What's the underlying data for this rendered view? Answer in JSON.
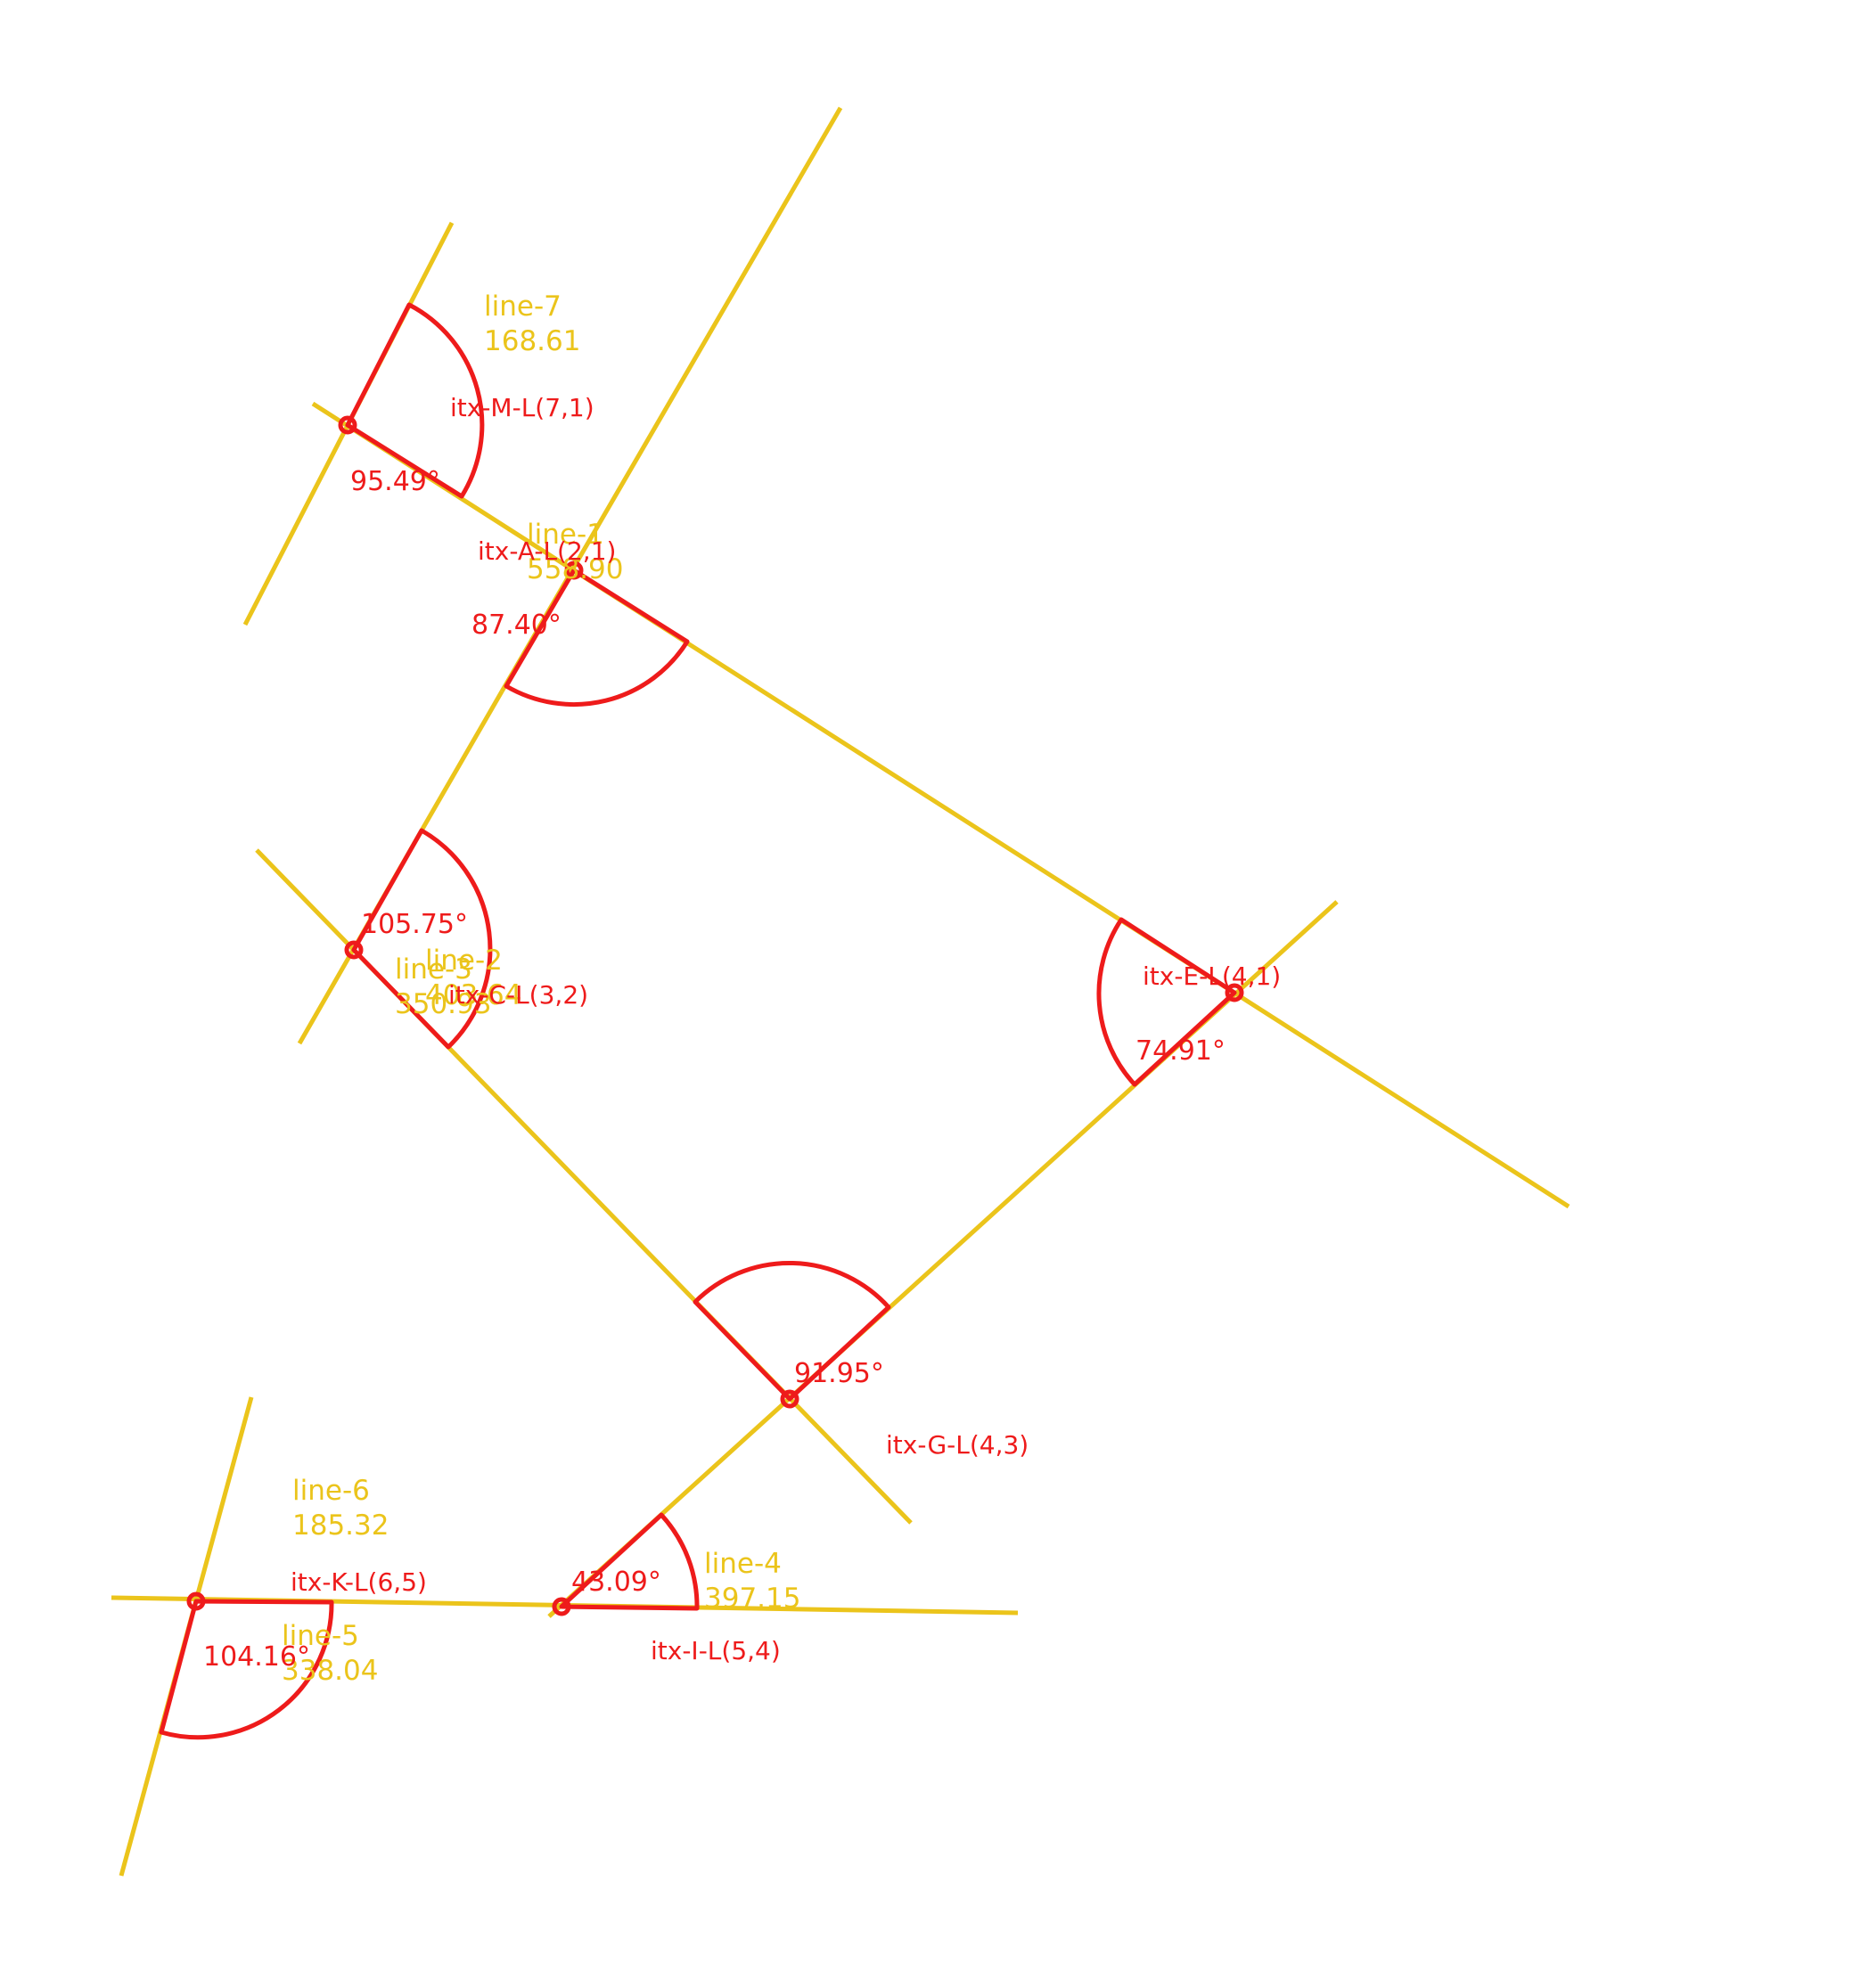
{
  "colors": {
    "line": "#ebc41b",
    "marker": "#ee1b1b",
    "background": "#ffffff"
  },
  "lines": [
    {
      "id": "line-1",
      "name": "line-1",
      "length": "558.90"
    },
    {
      "id": "line-2",
      "name": "line-2",
      "length": "403.64"
    },
    {
      "id": "line-3",
      "name": "line-3",
      "length": "350.93"
    },
    {
      "id": "line-4",
      "name": "line-4",
      "length": "397.15"
    },
    {
      "id": "line-5",
      "name": "line-5",
      "length": "338.04"
    },
    {
      "id": "line-6",
      "name": "line-6",
      "length": "185.32"
    },
    {
      "id": "line-7",
      "name": "line-7",
      "length": "168.61"
    }
  ],
  "intersections": [
    {
      "id": "M",
      "label": "itx-M-L(7,1)",
      "angle": "95.49°"
    },
    {
      "id": "A",
      "label": "itx-A-L(2,1)",
      "angle": "87.40°"
    },
    {
      "id": "C",
      "label": "itx-C-L(3,2)",
      "angle": "105.75°"
    },
    {
      "id": "E",
      "label": "itx-E-L(4,1)",
      "angle": "74.91°"
    },
    {
      "id": "G",
      "label": "itx-G-L(4,3)",
      "angle": "91.95°"
    },
    {
      "id": "I",
      "label": "itx-I-L(5,4)",
      "angle": "43.09°"
    },
    {
      "id": "K",
      "label": "itx-K-L(6,5)",
      "angle": "104.16°"
    }
  ]
}
